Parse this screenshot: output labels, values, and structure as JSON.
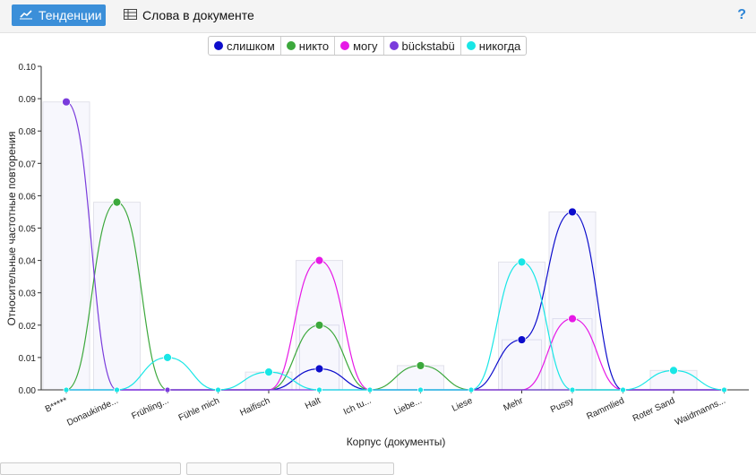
{
  "toolbar": {
    "tab_trends": "Тенденции",
    "tab_trends_icon": "line-chart-icon",
    "tab_words": "Слова в документе",
    "tab_words_icon": "table-icon",
    "help": "?"
  },
  "colors": {
    "accent": "#3b8fd9",
    "series": [
      "#0d0dcc",
      "#3ca83c",
      "#e619e6",
      "#7a3cdc",
      "#19e6e6"
    ]
  },
  "chart_data": {
    "type": "line",
    "xlabel": "Корпус (документы)",
    "ylabel": "Относительные частотные повторения",
    "ylim": [
      0,
      0.1
    ],
    "yticks": [
      "0.00",
      "0.01",
      "0.02",
      "0.03",
      "0.04",
      "0.05",
      "0.06",
      "0.07",
      "0.08",
      "0.09",
      "0.10"
    ],
    "categories": [
      "B*****",
      "Donaukinde...",
      "Frühling...",
      "Fühle mich",
      "Haifisch",
      "Halt",
      "Ich tu...",
      "Liebe...",
      "Liese",
      "Mehr",
      "Pussy",
      "Rammlied",
      "Roter Sand",
      "Waidmanns..."
    ],
    "bars": [
      0.089,
      0.058,
      0.0,
      0.0,
      0.0055,
      0.04,
      0.0,
      0.0075,
      0.0,
      0.0395,
      0.055,
      0.0,
      0.006,
      0.0
    ],
    "bars_inner": [
      0,
      0,
      0,
      0,
      0,
      0.02,
      0,
      0,
      0,
      0.0155,
      0.022,
      0,
      0,
      0
    ],
    "legend_position": "top",
    "series": [
      {
        "name": "слишком",
        "values": [
          0,
          0,
          0,
          0,
          0,
          0.0065,
          0,
          0,
          0,
          0.0155,
          0.055,
          0,
          0,
          0
        ]
      },
      {
        "name": "никто",
        "values": [
          0,
          0.058,
          0,
          0,
          0,
          0.02,
          0,
          0.0075,
          0,
          0,
          0,
          0,
          0,
          0
        ]
      },
      {
        "name": "могу",
        "values": [
          0,
          0,
          0,
          0,
          0,
          0.04,
          0,
          0,
          0,
          0,
          0.022,
          0,
          0,
          0
        ]
      },
      {
        "name": "bückstabü",
        "values": [
          0.089,
          0,
          0,
          0,
          0,
          0,
          0,
          0,
          0,
          0,
          0,
          0,
          0,
          0
        ]
      },
      {
        "name": "никогда",
        "values": [
          0,
          0,
          0.01,
          0,
          0.0055,
          0,
          0,
          0,
          0,
          0.0395,
          0,
          0,
          0.006,
          0
        ]
      }
    ]
  }
}
